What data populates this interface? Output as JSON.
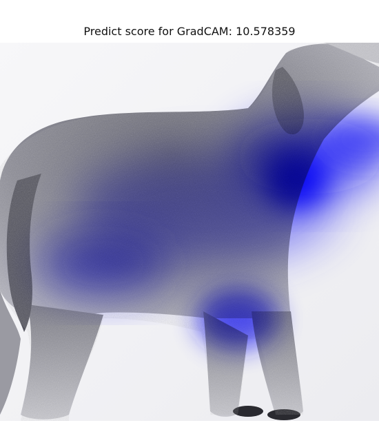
{
  "figure": {
    "title": "Predict score for GradCAM: 10.578359",
    "image_subject": "dog-photo",
    "overlay": "gradcam-heatmap",
    "colors": {
      "background": "#ffffff",
      "heatmap": "#1f1ff0",
      "fur_dark": "#3a3a44",
      "fur_mid": "#8c8c96",
      "fur_light": "#d6d6dc"
    }
  }
}
